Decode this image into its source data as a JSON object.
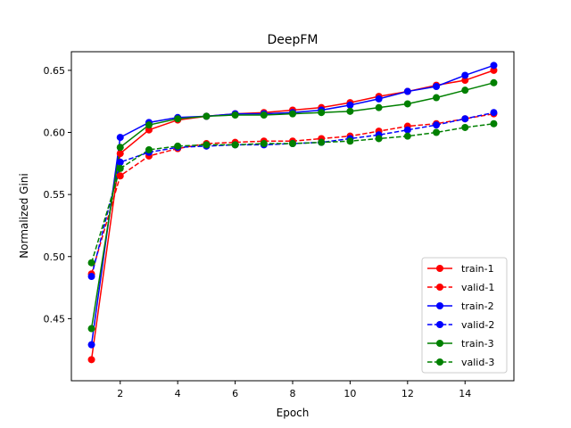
{
  "chart_data": {
    "type": "line",
    "title": "DeepFM",
    "xlabel": "Epoch",
    "ylabel": "Normalized Gini",
    "xlim": [
      0.3,
      15.7
    ],
    "ylim": [
      0.4,
      0.665
    ],
    "xticks": [
      2,
      4,
      6,
      8,
      10,
      12,
      14
    ],
    "yticks": [
      0.45,
      0.5,
      0.55,
      0.6,
      0.65
    ],
    "ytick_labels": [
      "0.45",
      "0.50",
      "0.55",
      "0.60",
      "0.65"
    ],
    "grid": false,
    "legend_position": "lower-right",
    "x": [
      1,
      2,
      3,
      4,
      5,
      6,
      7,
      8,
      9,
      10,
      11,
      12,
      13,
      14,
      15
    ],
    "series": [
      {
        "name": "train-1",
        "color": "#ff0000",
        "style": "solid",
        "values": [
          0.417,
          0.583,
          0.602,
          0.61,
          0.613,
          0.615,
          0.616,
          0.618,
          0.62,
          0.624,
          0.629,
          0.633,
          0.638,
          0.642,
          0.65
        ]
      },
      {
        "name": "valid-1",
        "color": "#ff0000",
        "style": "dashed",
        "values": [
          0.486,
          0.565,
          0.581,
          0.587,
          0.591,
          0.592,
          0.593,
          0.593,
          0.595,
          0.597,
          0.601,
          0.605,
          0.607,
          0.611,
          0.615
        ]
      },
      {
        "name": "train-2",
        "color": "#0000ff",
        "style": "solid",
        "values": [
          0.429,
          0.596,
          0.608,
          0.612,
          0.613,
          0.615,
          0.615,
          0.616,
          0.618,
          0.622,
          0.627,
          0.633,
          0.637,
          0.646,
          0.654
        ]
      },
      {
        "name": "valid-2",
        "color": "#0000ff",
        "style": "dashed",
        "values": [
          0.484,
          0.576,
          0.584,
          0.588,
          0.589,
          0.59,
          0.59,
          0.591,
          0.592,
          0.595,
          0.598,
          0.602,
          0.606,
          0.611,
          0.616
        ]
      },
      {
        "name": "train-3",
        "color": "#008000",
        "style": "solid",
        "values": [
          0.442,
          0.588,
          0.606,
          0.611,
          0.613,
          0.614,
          0.614,
          0.615,
          0.616,
          0.617,
          0.62,
          0.623,
          0.628,
          0.634,
          0.64
        ]
      },
      {
        "name": "valid-3",
        "color": "#008000",
        "style": "dashed",
        "values": [
          0.495,
          0.571,
          0.586,
          0.589,
          0.59,
          0.59,
          0.591,
          0.591,
          0.592,
          0.593,
          0.595,
          0.597,
          0.6,
          0.604,
          0.607
        ]
      }
    ]
  }
}
